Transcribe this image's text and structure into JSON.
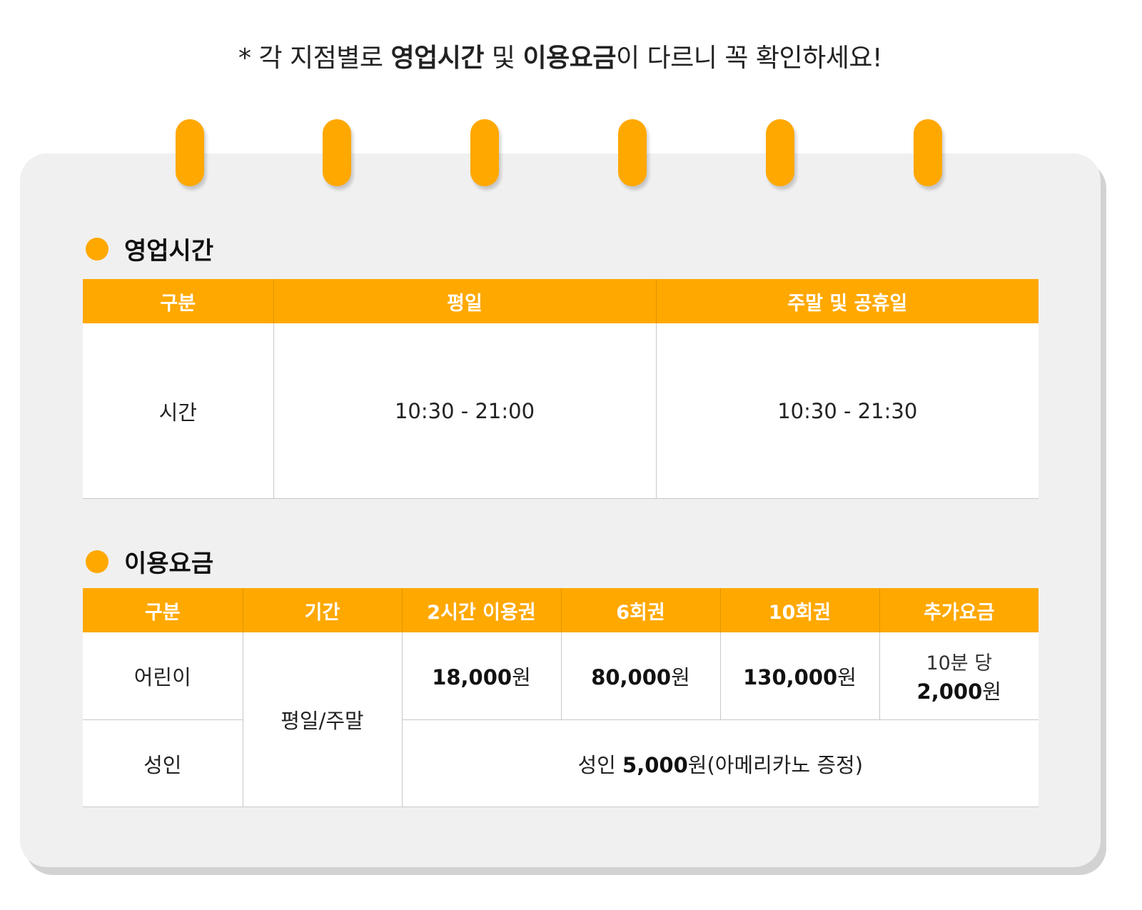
{
  "notice": {
    "prefix": "* 각 지점별로 ",
    "highlight1": "영업시간",
    "middle": " 및 ",
    "highlight2": "이용요금",
    "suffix": "이 다르니 꼭 확인하세요!"
  },
  "colors": {
    "accent": "#ffa800",
    "board": "#f0f0f0",
    "text": "#222222"
  },
  "rings": 6,
  "hours": {
    "title": "영업시간",
    "headers": [
      "구분",
      "평일",
      "주말 및 공휴일"
    ],
    "row": {
      "label": "시간",
      "weekday": "10:30 - 21:00",
      "weekend": "10:30 - 21:30"
    }
  },
  "fees": {
    "title": "이용요금",
    "headers": [
      "구분",
      "기간",
      "2시간 이용권",
      "6회권",
      "10회권",
      "추가요금"
    ],
    "period": "평일/주말",
    "child": {
      "label": "어린이",
      "two_hour_amount": "18,000",
      "six_amount": "80,000",
      "ten_amount": "130,000",
      "extra_prefix": "10분 당",
      "extra_amount": "2,000"
    },
    "currency": "원",
    "adult": {
      "label": "성인",
      "note_prefix": "성인 ",
      "note_amount": "5,000",
      "note_suffix": "원(아메리카노 증정)"
    }
  }
}
